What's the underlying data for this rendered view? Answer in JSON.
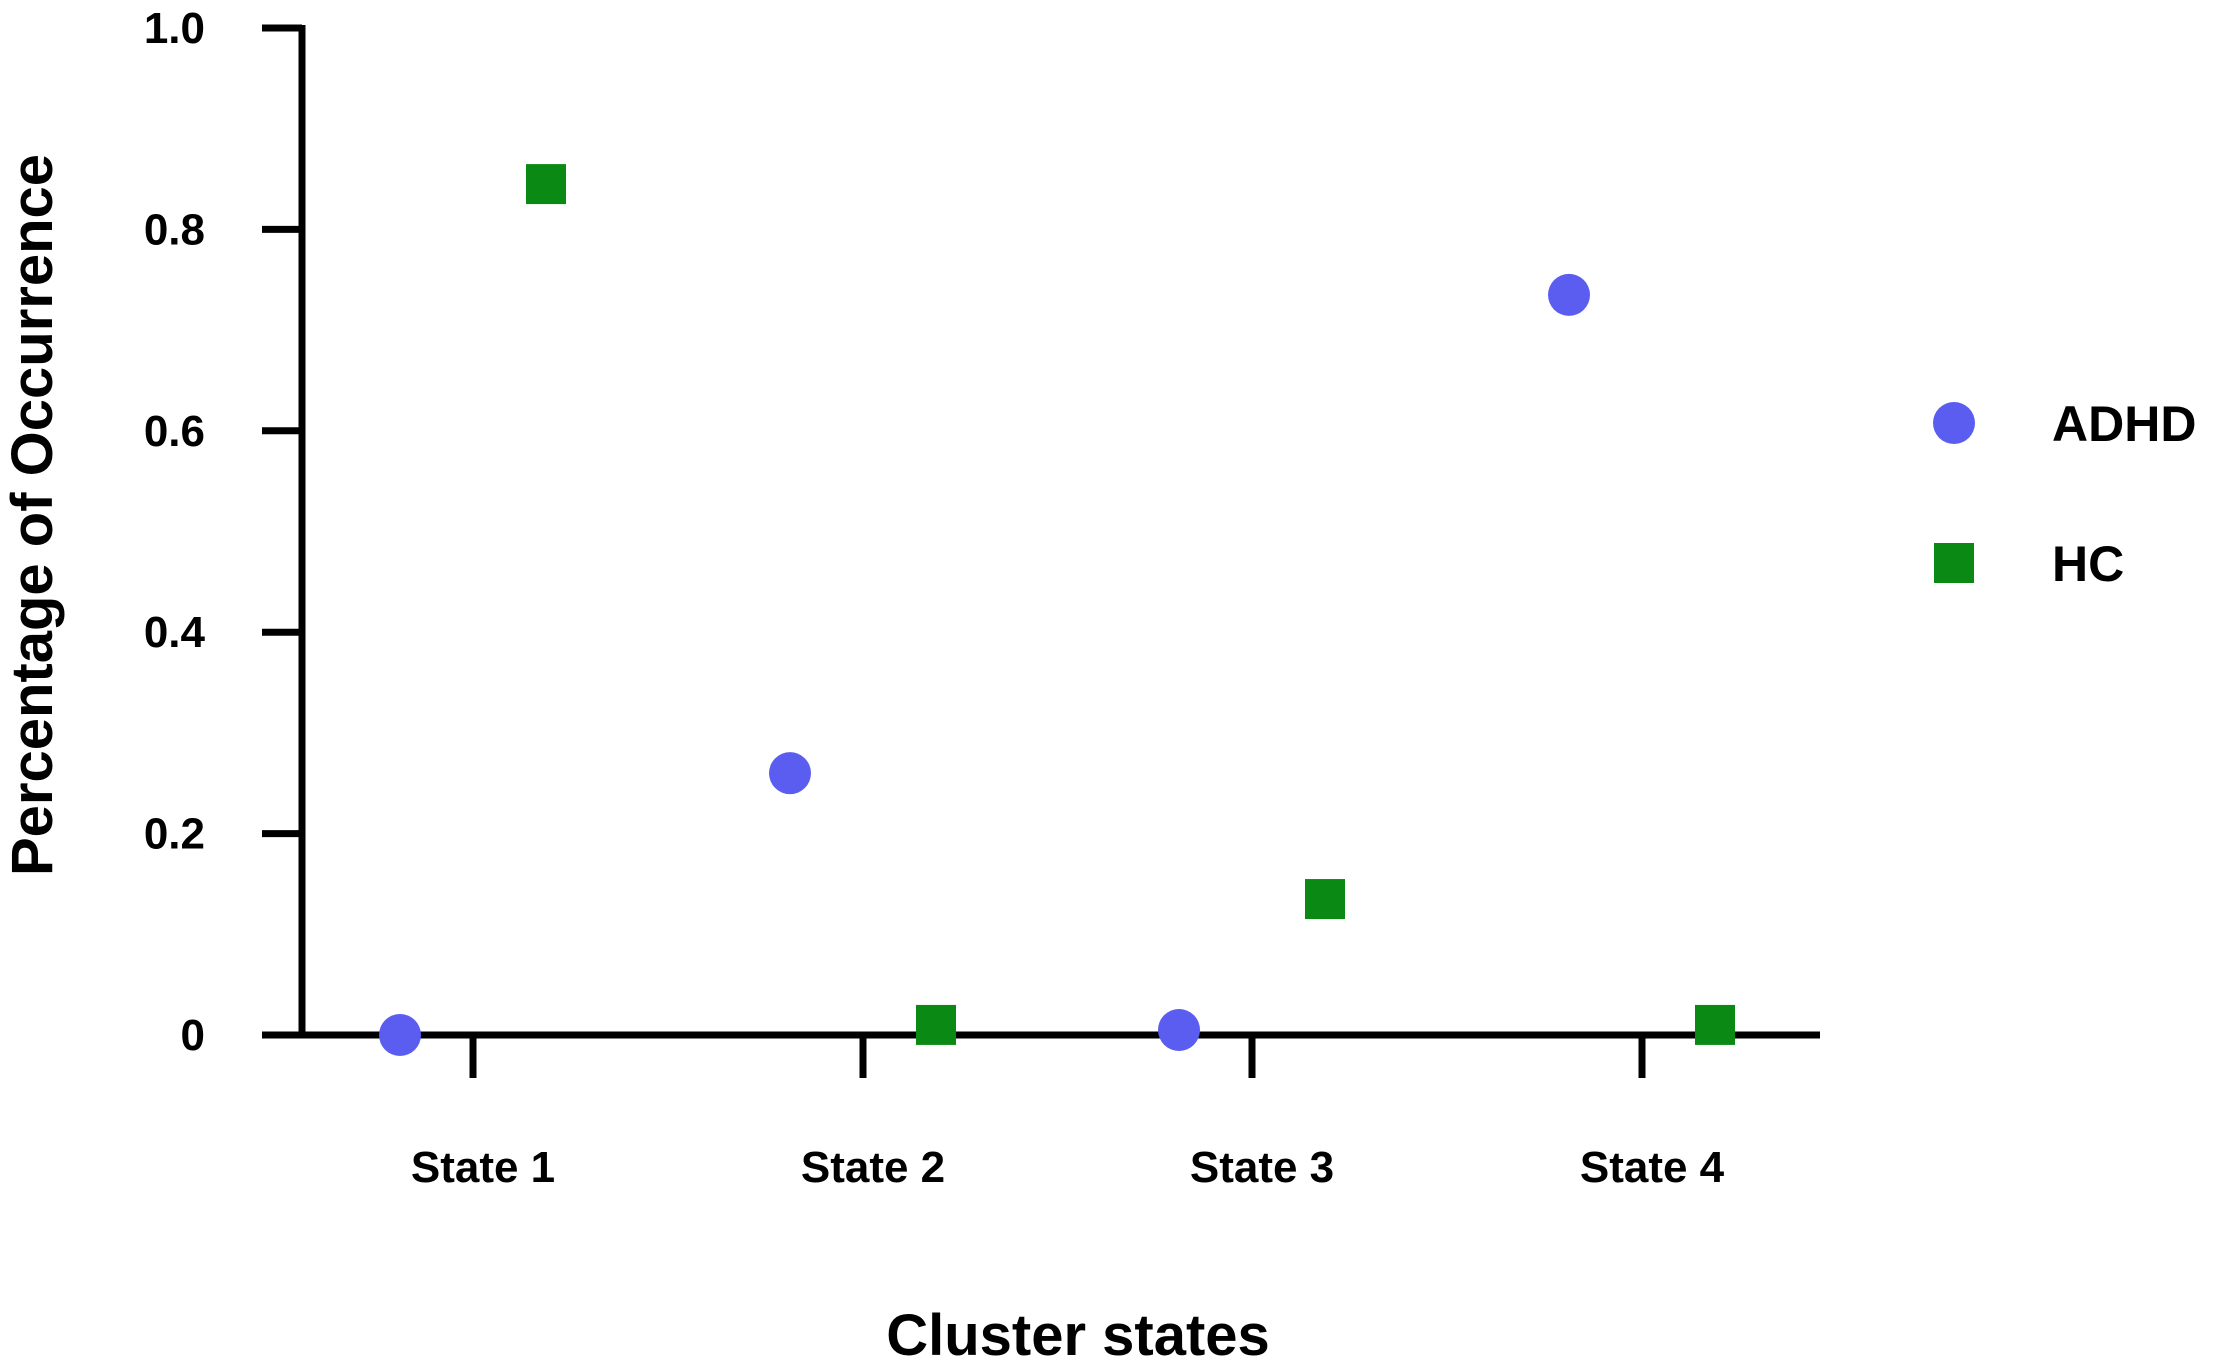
{
  "chart_data": {
    "type": "scatter",
    "title": "",
    "xlabel": "Cluster states",
    "ylabel": "Percentage of Occurrence",
    "categories": [
      "State 1",
      "State 2",
      "State 3",
      "State 4"
    ],
    "ylim": [
      0,
      1.0
    ],
    "yticks": [
      0,
      0.2,
      0.4,
      0.6,
      0.8,
      1.0
    ],
    "ytick_labels": [
      "0",
      "0.2",
      "0.4",
      "0.6",
      "0.8",
      "1.0"
    ],
    "grid": false,
    "legend_position": "right",
    "series": [
      {
        "name": "ADHD",
        "marker": "circle",
        "color": "#5a5df0",
        "values": [
          0.0,
          0.26,
          0.005,
          0.735
        ]
      },
      {
        "name": "HC",
        "marker": "square",
        "color": "#0a8a14",
        "values": [
          0.845,
          0.01,
          0.135,
          0.01
        ]
      }
    ]
  }
}
